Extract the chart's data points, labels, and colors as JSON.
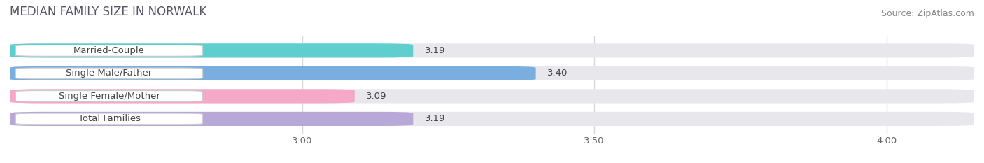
{
  "title": "MEDIAN FAMILY SIZE IN NORWALK",
  "source": "Source: ZipAtlas.com",
  "categories": [
    "Married-Couple",
    "Single Male/Father",
    "Single Female/Mother",
    "Total Families"
  ],
  "values": [
    3.19,
    3.4,
    3.09,
    3.19
  ],
  "bar_colors": [
    "#5ecece",
    "#7aaee0",
    "#f5a8c8",
    "#b8a8d8"
  ],
  "bar_bg_color": "#e8e8ec",
  "xlim_left": 2.5,
  "xlim_right": 4.15,
  "xticks": [
    3.0,
    3.5,
    4.0
  ],
  "xtick_labels": [
    "3.00",
    "3.50",
    "4.00"
  ],
  "bar_height": 0.62,
  "label_fontsize": 9.5,
  "title_fontsize": 12,
  "value_fontsize": 9.5,
  "source_fontsize": 9,
  "bg_color": "#ffffff",
  "label_box_color": "#ffffff",
  "grid_color": "#d8d8d8",
  "text_color": "#444444",
  "source_color": "#888888"
}
